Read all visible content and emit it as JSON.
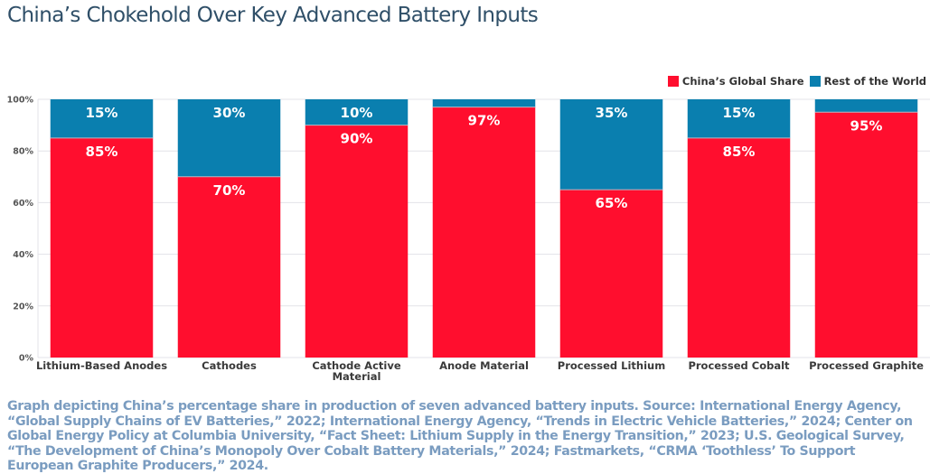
{
  "chart_data": {
    "type": "bar",
    "stacked": true,
    "title": "China’s Chokehold Over Key Advanced Battery Inputs",
    "xlabel": "",
    "ylabel": "",
    "ylim": [
      0,
      100
    ],
    "yticks": [
      0,
      20,
      40,
      60,
      80,
      100
    ],
    "ytick_labels": [
      "0%",
      "20%",
      "40%",
      "60%",
      "80%",
      "100%"
    ],
    "grid": true,
    "legend_position": "top-right",
    "categories": [
      "Lithium-Based Anodes",
      "Cathodes",
      "Cathode Active Material",
      "Anode Material",
      "Processed Lithium",
      "Processed Cobalt",
      "Processed Graphite"
    ],
    "series": [
      {
        "name": "China’s Global Share",
        "color": "#ff0e2e",
        "values": [
          85,
          70,
          90,
          97,
          65,
          85,
          95
        ],
        "labels": [
          "85%",
          "70%",
          "90%",
          "97%",
          "65%",
          "85%",
          "95%"
        ]
      },
      {
        "name": "Rest of the World",
        "color": "#0a7faf",
        "values": [
          15,
          30,
          10,
          3,
          35,
          15,
          5
        ],
        "labels": [
          "15%",
          "30%",
          "10%",
          "",
          "35%",
          "15%",
          ""
        ]
      }
    ]
  },
  "caption": "Graph depicting China’s percentage share in production of seven advanced battery inputs. Source: International Energy Agency, “Global Supply Chains of EV Batteries,” 2022; International Energy Agency, “Trends in Electric Vehicle Batteries,” 2024; Center on Global Energy Policy at Columbia University, “Fact Sheet: Lithium Supply in the Energy Transition,” 2023; U.S. Geological Survey, “The Development of China’s Monopoly Over Cobalt Battery Materials,” 2024; Fastmarkets, “CRMA ‘Toothless’ To Support European Graphite Producers,” 2024."
}
